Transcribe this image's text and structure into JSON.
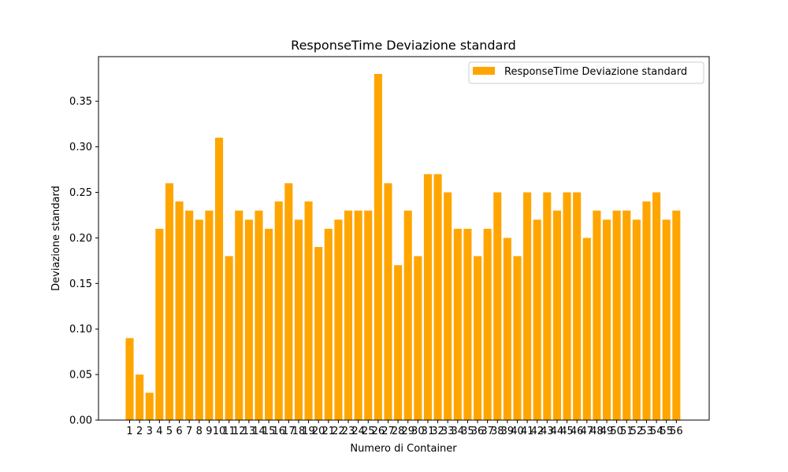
{
  "chart_data": {
    "type": "bar",
    "title": "ResponseTime Deviazione standard",
    "xlabel": "Numero di Container",
    "ylabel": "Deviazione standard",
    "categories": [
      "1",
      "2",
      "3",
      "4",
      "5",
      "6",
      "7",
      "8",
      "9",
      "10",
      "11",
      "12",
      "13",
      "14",
      "15",
      "16",
      "17",
      "18",
      "19",
      "20",
      "21",
      "22",
      "23",
      "24",
      "25",
      "26",
      "27",
      "28",
      "29",
      "30",
      "31",
      "32",
      "33",
      "34",
      "35",
      "36",
      "37",
      "38",
      "39",
      "40",
      "41",
      "42",
      "43",
      "44",
      "45",
      "46",
      "47",
      "48",
      "49",
      "50",
      "51",
      "52",
      "53",
      "54",
      "55",
      "56"
    ],
    "series": [
      {
        "name": "ResponseTime Deviazione standard",
        "color": "#ffa500",
        "values": [
          0.09,
          0.05,
          0.03,
          0.21,
          0.26,
          0.24,
          0.23,
          0.22,
          0.23,
          0.31,
          0.18,
          0.23,
          0.22,
          0.23,
          0.21,
          0.24,
          0.26,
          0.22,
          0.24,
          0.19,
          0.21,
          0.22,
          0.23,
          0.23,
          0.23,
          0.38,
          0.26,
          0.17,
          0.23,
          0.18,
          0.27,
          0.27,
          0.25,
          0.21,
          0.21,
          0.18,
          0.21,
          0.25,
          0.2,
          0.18,
          0.25,
          0.22,
          0.25,
          0.23,
          0.25,
          0.25,
          0.2,
          0.23,
          0.22,
          0.23,
          0.23,
          0.22,
          0.24,
          0.25,
          0.22,
          0.23
        ]
      }
    ],
    "ylim": [
      0,
      0.399
    ],
    "yticks": [
      "0.00",
      "0.05",
      "0.10",
      "0.15",
      "0.20",
      "0.25",
      "0.30",
      "0.35"
    ],
    "legend_position": "top-right",
    "grid": false
  }
}
